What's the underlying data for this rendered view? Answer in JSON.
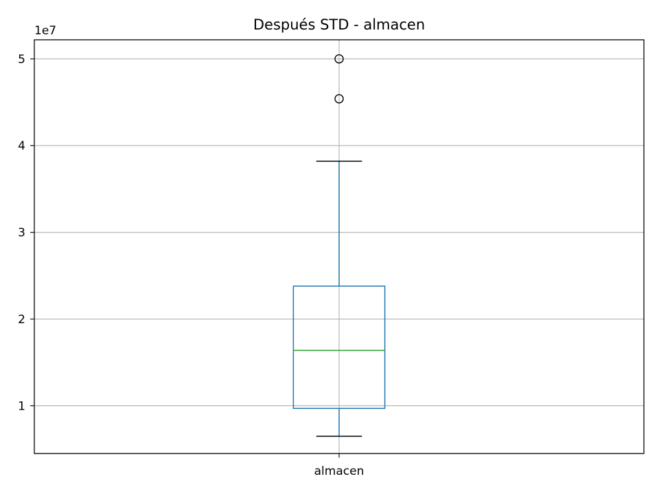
{
  "chart_data": {
    "type": "box",
    "title": "Después STD - almacen",
    "xlabel": "",
    "ylabel": "",
    "categories": [
      "almacen"
    ],
    "y_offset_label": "1e7",
    "y_scale": 10000000,
    "ylim": [
      4500000,
      52200000
    ],
    "y_ticks": [
      10000000,
      20000000,
      30000000,
      40000000,
      50000000
    ],
    "y_tick_labels": [
      "1",
      "2",
      "3",
      "4",
      "5"
    ],
    "grid": true,
    "boxes": [
      {
        "name": "almacen",
        "whisker_low": 6500000,
        "q1": 9700000,
        "median": 16400000,
        "q3": 23800000,
        "whisker_high": 38200000,
        "outliers": [
          45400000,
          50000000
        ]
      }
    ],
    "colors": {
      "box": "#1f77b4",
      "median": "#2ca02c",
      "whisker_cap": "#000000",
      "grid": "#b0b0b0",
      "outlier": "#000000"
    }
  }
}
